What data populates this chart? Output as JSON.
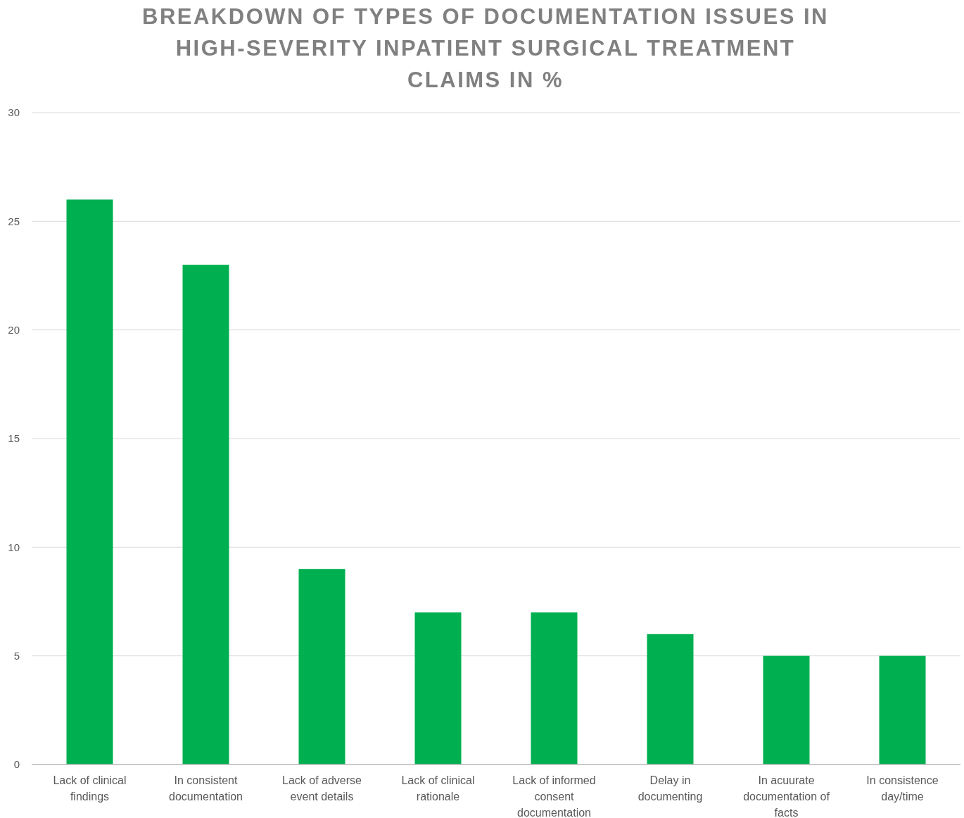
{
  "chart_data": {
    "type": "bar",
    "title": "BREAKDOWN OF TYPES OF DOCUMENTATION ISSUES IN HIGH-SEVERITY INPATIENT SURGICAL TREATMENT CLAIMS IN %",
    "categories": [
      "Lack of clinical findings",
      "In consistent documentation",
      "Lack of adverse event details",
      "Lack of clinical rationale",
      "Lack of informed consent documentation",
      "Delay in documenting",
      "In acuurate documentation of facts",
      "In consistence day/time"
    ],
    "values": [
      26,
      23,
      9,
      7,
      7,
      6,
      5,
      5
    ],
    "color": "#00b050",
    "ylim": [
      0,
      30
    ],
    "yticks": [
      0,
      5,
      10,
      15,
      20,
      25,
      30
    ],
    "grid": "y"
  }
}
